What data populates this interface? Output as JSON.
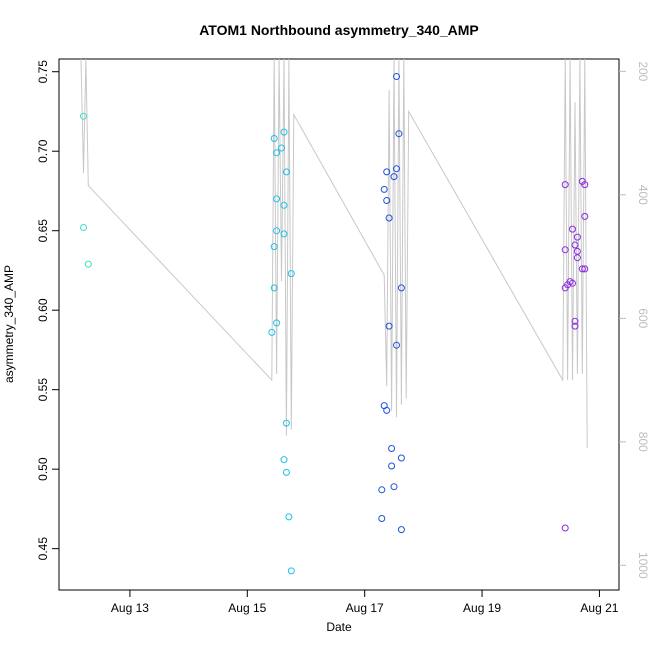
{
  "chart_data": {
    "type": "scatter",
    "title": "ATOM1 Northbound asymmetry_340_AMP",
    "xlabel": "Date",
    "ylabel": "asymmetry_340_AMP",
    "x_ticks": [
      "Aug 13",
      "Aug 15",
      "Aug 17",
      "Aug 19",
      "Aug 21"
    ],
    "y_ticks": [
      "0.45",
      "0.50",
      "0.55",
      "0.60",
      "0.65",
      "0.70",
      "0.75"
    ],
    "y_right_ticks": [
      "200",
      "400",
      "600",
      "800",
      "1000"
    ],
    "xlim": [
      "2023-08-11T19:00",
      "2023-08-21T08:00"
    ],
    "ylim": [
      0.424,
      0.758
    ],
    "y_right_lim": [
      1040,
      180
    ],
    "grid": false,
    "legend": "none",
    "colors": {
      "early": "#40e0c0",
      "aug15": "#20c0e8",
      "aug17": "#2050e0",
      "aug20": "#8a2be2",
      "line": "#c8c8c8"
    },
    "series": [
      {
        "color_key": "early",
        "points": [
          [
            "2023-08-12T05:00",
            0.722
          ],
          [
            "2023-08-12T05:00",
            0.652
          ],
          [
            "2023-08-12T07:00",
            0.629
          ]
        ]
      },
      {
        "color_key": "aug15",
        "points": [
          [
            "2023-08-15T11:00",
            0.708
          ],
          [
            "2023-08-15T12:00",
            0.699
          ],
          [
            "2023-08-15T14:00",
            0.702
          ],
          [
            "2023-08-15T15:00",
            0.712
          ],
          [
            "2023-08-15T12:00",
            0.67
          ],
          [
            "2023-08-15T16:00",
            0.687
          ],
          [
            "2023-08-15T15:00",
            0.666
          ],
          [
            "2023-08-15T12:00",
            0.65
          ],
          [
            "2023-08-15T15:00",
            0.648
          ],
          [
            "2023-08-15T11:00",
            0.64
          ],
          [
            "2023-08-15T18:00",
            0.623
          ],
          [
            "2023-08-15T11:00",
            0.614
          ],
          [
            "2023-08-15T12:00",
            0.592
          ],
          [
            "2023-08-15T10:00",
            0.586
          ],
          [
            "2023-08-15T16:00",
            0.529
          ],
          [
            "2023-08-15T15:00",
            0.506
          ],
          [
            "2023-08-15T16:00",
            0.498
          ],
          [
            "2023-08-15T17:00",
            0.47
          ],
          [
            "2023-08-15T18:00",
            0.436
          ]
        ]
      },
      {
        "color_key": "aug17",
        "points": [
          [
            "2023-08-17T13:00",
            0.747
          ],
          [
            "2023-08-17T14:00",
            0.711
          ],
          [
            "2023-08-17T09:00",
            0.687
          ],
          [
            "2023-08-17T12:00",
            0.684
          ],
          [
            "2023-08-17T13:00",
            0.689
          ],
          [
            "2023-08-17T08:00",
            0.676
          ],
          [
            "2023-08-17T09:00",
            0.669
          ],
          [
            "2023-08-17T10:00",
            0.658
          ],
          [
            "2023-08-17T15:00",
            0.614
          ],
          [
            "2023-08-17T10:00",
            0.59
          ],
          [
            "2023-08-17T13:00",
            0.578
          ],
          [
            "2023-08-17T08:00",
            0.54
          ],
          [
            "2023-08-17T09:00",
            0.537
          ],
          [
            "2023-08-17T11:00",
            0.513
          ],
          [
            "2023-08-17T15:00",
            0.507
          ],
          [
            "2023-08-17T11:00",
            0.502
          ],
          [
            "2023-08-17T07:00",
            0.487
          ],
          [
            "2023-08-17T12:00",
            0.489
          ],
          [
            "2023-08-17T07:00",
            0.469
          ],
          [
            "2023-08-17T15:00",
            0.462
          ]
        ]
      },
      {
        "color_key": "aug20",
        "points": [
          [
            "2023-08-20T10:00",
            0.679
          ],
          [
            "2023-08-20T17:00",
            0.681
          ],
          [
            "2023-08-20T18:00",
            0.679
          ],
          [
            "2023-08-20T18:00",
            0.659
          ],
          [
            "2023-08-20T13:00",
            0.651
          ],
          [
            "2023-08-20T15:00",
            0.646
          ],
          [
            "2023-08-20T14:00",
            0.641
          ],
          [
            "2023-08-20T10:00",
            0.638
          ],
          [
            "2023-08-20T15:00",
            0.637
          ],
          [
            "2023-08-20T15:00",
            0.633
          ],
          [
            "2023-08-20T17:00",
            0.626
          ],
          [
            "2023-08-20T18:00",
            0.626
          ],
          [
            "2023-08-20T12:00",
            0.618
          ],
          [
            "2023-08-20T13:00",
            0.617
          ],
          [
            "2023-08-20T11:00",
            0.616
          ],
          [
            "2023-08-20T10:00",
            0.614
          ],
          [
            "2023-08-20T14:00",
            0.593
          ],
          [
            "2023-08-20T14:00",
            0.59
          ],
          [
            "2023-08-20T10:00",
            0.463
          ]
        ]
      }
    ],
    "line_series": {
      "axis": "right",
      "points": [
        [
          "2023-08-12T04:00",
          180
        ],
        [
          "2023-08-12T05:00",
          365
        ],
        [
          "2023-08-12T06:00",
          180
        ],
        [
          "2023-08-12T07:00",
          385
        ],
        [
          "2023-08-15T10:00",
          700
        ],
        [
          "2023-08-15T11:00",
          180
        ],
        [
          "2023-08-15T12:00",
          690
        ],
        [
          "2023-08-15T13:00",
          180
        ],
        [
          "2023-08-15T14:00",
          540
        ],
        [
          "2023-08-15T15:00",
          180
        ],
        [
          "2023-08-15T16:00",
          790
        ],
        [
          "2023-08-15T17:00",
          180
        ],
        [
          "2023-08-15T18:00",
          780
        ],
        [
          "2023-08-15T19:00",
          270
        ],
        [
          "2023-08-17T08:00",
          530
        ],
        [
          "2023-08-17T09:00",
          710
        ],
        [
          "2023-08-17T10:00",
          230
        ],
        [
          "2023-08-17T11:00",
          750
        ],
        [
          "2023-08-17T12:00",
          180
        ],
        [
          "2023-08-17T13:00",
          760
        ],
        [
          "2023-08-17T14:00",
          180
        ],
        [
          "2023-08-17T15:00",
          740
        ],
        [
          "2023-08-17T16:00",
          180
        ],
        [
          "2023-08-17T17:00",
          730
        ],
        [
          "2023-08-17T18:00",
          265
        ],
        [
          "2023-08-20T09:00",
          700
        ],
        [
          "2023-08-20T10:00",
          180
        ],
        [
          "2023-08-20T11:00",
          700
        ],
        [
          "2023-08-20T12:00",
          180
        ],
        [
          "2023-08-20T13:00",
          700
        ],
        [
          "2023-08-20T14:00",
          250
        ],
        [
          "2023-08-20T15:00",
          690
        ],
        [
          "2023-08-20T16:00",
          180
        ],
        [
          "2023-08-20T17:00",
          690
        ],
        [
          "2023-08-20T18:00",
          180
        ],
        [
          "2023-08-20T19:00",
          810
        ]
      ]
    }
  }
}
